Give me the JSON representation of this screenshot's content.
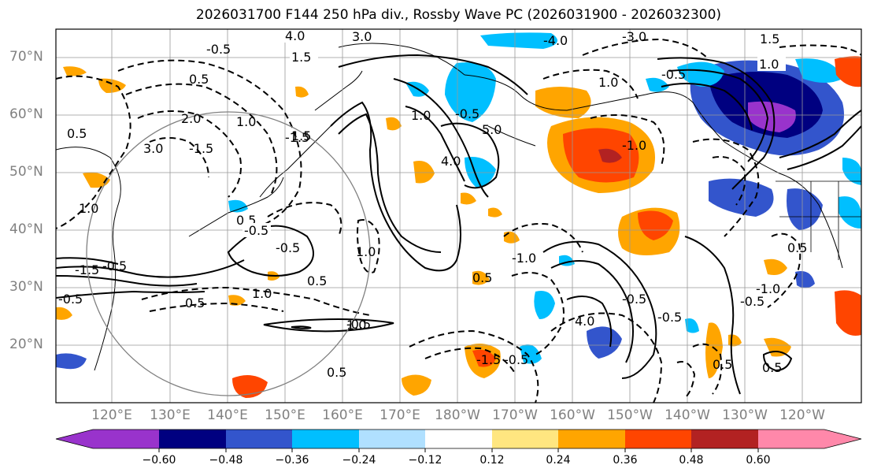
{
  "title": "2026031700 F144 250 hPa div., Rossby Wave PC (2026031900 - 2026032300)",
  "lat_labels": [
    "70°N",
    "60°N",
    "50°N",
    "40°N",
    "30°N",
    "20°N"
  ],
  "lon_labels": [
    "120°E",
    "130°E",
    "140°E",
    "150°E",
    "160°E",
    "170°E",
    "180°W",
    "170°W",
    "160°W",
    "150°W",
    "140°W",
    "130°W",
    "120°W"
  ],
  "colorbar": {
    "ticks": [
      "−0.60",
      "−0.48",
      "−0.36",
      "−0.24",
      "−0.12",
      "0.12",
      "0.24",
      "0.36",
      "0.48",
      "0.60"
    ],
    "colors": [
      "#9933cc",
      "#000080",
      "#3355cc",
      "#00bfff",
      "#b0e0ff",
      "#ffffff",
      "#ffe680",
      "#ffa500",
      "#ff4500",
      "#b22222",
      "#ff88aa"
    ]
  },
  "contour_labels": [
    "4.0",
    "3.0",
    "1.5",
    "-0.5",
    "0.5",
    "1.0",
    "2.0",
    "3.0",
    "-1.5",
    "1.0",
    "-1.5",
    "4.0",
    "5.0",
    "1.0",
    "-0.5",
    "1.0",
    "-4.0",
    "-3.0",
    "1.5",
    "-0.5",
    "1.0",
    "-1.0",
    "0.5",
    "-1.5",
    "-0.5",
    "0.5",
    "-0.5",
    "-0.5",
    "1.0",
    "-0.5",
    "0.5",
    "1.0",
    "0.5",
    "1.0",
    "-1.0",
    "0.5",
    "-0.5"
  ]
}
